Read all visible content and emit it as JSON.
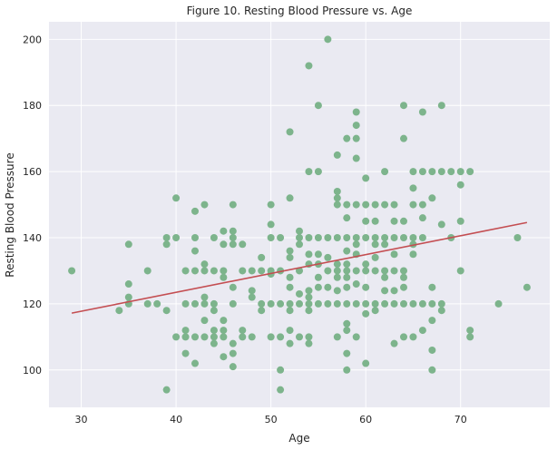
{
  "chart_data": {
    "type": "scatter",
    "title": "Figure 10. Resting Blood Pressure vs. Age",
    "xlabel": "Age",
    "ylabel": "Resting Blood Pressure",
    "xlim": [
      26.6,
      79.4
    ],
    "ylim": [
      88.7,
      205.3
    ],
    "xticks": [
      "30",
      "40",
      "50",
      "60",
      "70"
    ],
    "yticks": [
      "100",
      "120",
      "140",
      "160",
      "180",
      "200"
    ],
    "grid": true,
    "legend": "none",
    "colors": {
      "background": "#eaeaf2",
      "grid": "#ffffff",
      "points": "#7db48c",
      "fit_line": "#c44e52"
    },
    "fit_line": {
      "x": [
        29,
        77
      ],
      "y": [
        117.2,
        144.6
      ]
    },
    "points": [
      {
        "x": 29,
        "y": 130
      },
      {
        "x": 34,
        "y": 118
      },
      {
        "x": 35,
        "y": 138
      },
      {
        "x": 35,
        "y": 126
      },
      {
        "x": 35,
        "y": 122
      },
      {
        "x": 35,
        "y": 120
      },
      {
        "x": 37,
        "y": 130
      },
      {
        "x": 37,
        "y": 120
      },
      {
        "x": 38,
        "y": 120
      },
      {
        "x": 39,
        "y": 140
      },
      {
        "x": 39,
        "y": 138
      },
      {
        "x": 39,
        "y": 118
      },
      {
        "x": 39,
        "y": 94
      },
      {
        "x": 40,
        "y": 152
      },
      {
        "x": 40,
        "y": 140
      },
      {
        "x": 40,
        "y": 110
      },
      {
        "x": 41,
        "y": 130
      },
      {
        "x": 41,
        "y": 120
      },
      {
        "x": 41,
        "y": 112
      },
      {
        "x": 41,
        "y": 110
      },
      {
        "x": 41,
        "y": 105
      },
      {
        "x": 42,
        "y": 148
      },
      {
        "x": 42,
        "y": 140
      },
      {
        "x": 42,
        "y": 136
      },
      {
        "x": 42,
        "y": 130
      },
      {
        "x": 42,
        "y": 120
      },
      {
        "x": 42,
        "y": 110
      },
      {
        "x": 42,
        "y": 102
      },
      {
        "x": 43,
        "y": 150
      },
      {
        "x": 43,
        "y": 132
      },
      {
        "x": 43,
        "y": 130
      },
      {
        "x": 43,
        "y": 122
      },
      {
        "x": 43,
        "y": 120
      },
      {
        "x": 43,
        "y": 115
      },
      {
        "x": 43,
        "y": 110
      },
      {
        "x": 44,
        "y": 140
      },
      {
        "x": 44,
        "y": 130
      },
      {
        "x": 44,
        "y": 120
      },
      {
        "x": 44,
        "y": 118
      },
      {
        "x": 44,
        "y": 112
      },
      {
        "x": 44,
        "y": 110
      },
      {
        "x": 44,
        "y": 108
      },
      {
        "x": 45,
        "y": 142
      },
      {
        "x": 45,
        "y": 138
      },
      {
        "x": 45,
        "y": 130
      },
      {
        "x": 45,
        "y": 128
      },
      {
        "x": 45,
        "y": 115
      },
      {
        "x": 45,
        "y": 112
      },
      {
        "x": 45,
        "y": 110
      },
      {
        "x": 45,
        "y": 104
      },
      {
        "x": 46,
        "y": 150
      },
      {
        "x": 46,
        "y": 142
      },
      {
        "x": 46,
        "y": 140
      },
      {
        "x": 46,
        "y": 138
      },
      {
        "x": 46,
        "y": 125
      },
      {
        "x": 46,
        "y": 120
      },
      {
        "x": 46,
        "y": 108
      },
      {
        "x": 46,
        "y": 105
      },
      {
        "x": 46,
        "y": 101
      },
      {
        "x": 47,
        "y": 138
      },
      {
        "x": 47,
        "y": 130
      },
      {
        "x": 47,
        "y": 112
      },
      {
        "x": 47,
        "y": 110
      },
      {
        "x": 48,
        "y": 130
      },
      {
        "x": 48,
        "y": 124
      },
      {
        "x": 48,
        "y": 122
      },
      {
        "x": 48,
        "y": 110
      },
      {
        "x": 49,
        "y": 134
      },
      {
        "x": 49,
        "y": 130
      },
      {
        "x": 49,
        "y": 120
      },
      {
        "x": 49,
        "y": 118
      },
      {
        "x": 50,
        "y": 150
      },
      {
        "x": 50,
        "y": 144
      },
      {
        "x": 50,
        "y": 140
      },
      {
        "x": 50,
        "y": 130
      },
      {
        "x": 50,
        "y": 129
      },
      {
        "x": 50,
        "y": 120
      },
      {
        "x": 50,
        "y": 110
      },
      {
        "x": 51,
        "y": 140
      },
      {
        "x": 51,
        "y": 130
      },
      {
        "x": 51,
        "y": 120
      },
      {
        "x": 51,
        "y": 110
      },
      {
        "x": 51,
        "y": 100
      },
      {
        "x": 51,
        "y": 94
      },
      {
        "x": 52,
        "y": 172
      },
      {
        "x": 52,
        "y": 152
      },
      {
        "x": 52,
        "y": 136
      },
      {
        "x": 52,
        "y": 134
      },
      {
        "x": 52,
        "y": 128
      },
      {
        "x": 52,
        "y": 125
      },
      {
        "x": 52,
        "y": 120
      },
      {
        "x": 52,
        "y": 118
      },
      {
        "x": 52,
        "y": 112
      },
      {
        "x": 52,
        "y": 108
      },
      {
        "x": 53,
        "y": 142
      },
      {
        "x": 53,
        "y": 140
      },
      {
        "x": 53,
        "y": 138
      },
      {
        "x": 53,
        "y": 130
      },
      {
        "x": 53,
        "y": 123
      },
      {
        "x": 53,
        "y": 120
      },
      {
        "x": 53,
        "y": 110
      },
      {
        "x": 54,
        "y": 192
      },
      {
        "x": 54,
        "y": 160
      },
      {
        "x": 54,
        "y": 140
      },
      {
        "x": 54,
        "y": 135
      },
      {
        "x": 54,
        "y": 132
      },
      {
        "x": 54,
        "y": 124
      },
      {
        "x": 54,
        "y": 122
      },
      {
        "x": 54,
        "y": 120
      },
      {
        "x": 54,
        "y": 118
      },
      {
        "x": 54,
        "y": 110
      },
      {
        "x": 54,
        "y": 108
      },
      {
        "x": 55,
        "y": 180
      },
      {
        "x": 55,
        "y": 160
      },
      {
        "x": 55,
        "y": 140
      },
      {
        "x": 55,
        "y": 135
      },
      {
        "x": 55,
        "y": 132
      },
      {
        "x": 55,
        "y": 128
      },
      {
        "x": 55,
        "y": 125
      },
      {
        "x": 55,
        "y": 120
      },
      {
        "x": 56,
        "y": 200
      },
      {
        "x": 56,
        "y": 140
      },
      {
        "x": 56,
        "y": 134
      },
      {
        "x": 56,
        "y": 130
      },
      {
        "x": 56,
        "y": 125
      },
      {
        "x": 56,
        "y": 120
      },
      {
        "x": 57,
        "y": 165
      },
      {
        "x": 57,
        "y": 154
      },
      {
        "x": 57,
        "y": 152
      },
      {
        "x": 57,
        "y": 150
      },
      {
        "x": 57,
        "y": 140
      },
      {
        "x": 57,
        "y": 132
      },
      {
        "x": 57,
        "y": 130
      },
      {
        "x": 57,
        "y": 128
      },
      {
        "x": 57,
        "y": 124
      },
      {
        "x": 57,
        "y": 120
      },
      {
        "x": 57,
        "y": 110
      },
      {
        "x": 58,
        "y": 170
      },
      {
        "x": 58,
        "y": 150
      },
      {
        "x": 58,
        "y": 146
      },
      {
        "x": 58,
        "y": 140
      },
      {
        "x": 58,
        "y": 136
      },
      {
        "x": 58,
        "y": 132
      },
      {
        "x": 58,
        "y": 130
      },
      {
        "x": 58,
        "y": 128
      },
      {
        "x": 58,
        "y": 125
      },
      {
        "x": 58,
        "y": 120
      },
      {
        "x": 58,
        "y": 114
      },
      {
        "x": 58,
        "y": 112
      },
      {
        "x": 58,
        "y": 105
      },
      {
        "x": 58,
        "y": 100
      },
      {
        "x": 59,
        "y": 178
      },
      {
        "x": 59,
        "y": 174
      },
      {
        "x": 59,
        "y": 170
      },
      {
        "x": 59,
        "y": 164
      },
      {
        "x": 59,
        "y": 150
      },
      {
        "x": 59,
        "y": 140
      },
      {
        "x": 59,
        "y": 138
      },
      {
        "x": 59,
        "y": 135
      },
      {
        "x": 59,
        "y": 130
      },
      {
        "x": 59,
        "y": 126
      },
      {
        "x": 59,
        "y": 120
      },
      {
        "x": 59,
        "y": 110
      },
      {
        "x": 60,
        "y": 158
      },
      {
        "x": 60,
        "y": 150
      },
      {
        "x": 60,
        "y": 145
      },
      {
        "x": 60,
        "y": 140
      },
      {
        "x": 60,
        "y": 132
      },
      {
        "x": 60,
        "y": 130
      },
      {
        "x": 60,
        "y": 125
      },
      {
        "x": 60,
        "y": 120
      },
      {
        "x": 60,
        "y": 117
      },
      {
        "x": 60,
        "y": 102
      },
      {
        "x": 61,
        "y": 150
      },
      {
        "x": 61,
        "y": 145
      },
      {
        "x": 61,
        "y": 140
      },
      {
        "x": 61,
        "y": 138
      },
      {
        "x": 61,
        "y": 134
      },
      {
        "x": 61,
        "y": 130
      },
      {
        "x": 61,
        "y": 120
      },
      {
        "x": 61,
        "y": 118
      },
      {
        "x": 62,
        "y": 160
      },
      {
        "x": 62,
        "y": 150
      },
      {
        "x": 62,
        "y": 140
      },
      {
        "x": 62,
        "y": 138
      },
      {
        "x": 62,
        "y": 130
      },
      {
        "x": 62,
        "y": 128
      },
      {
        "x": 62,
        "y": 124
      },
      {
        "x": 62,
        "y": 120
      },
      {
        "x": 63,
        "y": 150
      },
      {
        "x": 63,
        "y": 145
      },
      {
        "x": 63,
        "y": 140
      },
      {
        "x": 63,
        "y": 135
      },
      {
        "x": 63,
        "y": 130
      },
      {
        "x": 63,
        "y": 124
      },
      {
        "x": 63,
        "y": 120
      },
      {
        "x": 63,
        "y": 108
      },
      {
        "x": 64,
        "y": 180
      },
      {
        "x": 64,
        "y": 170
      },
      {
        "x": 64,
        "y": 145
      },
      {
        "x": 64,
        "y": 140
      },
      {
        "x": 64,
        "y": 130
      },
      {
        "x": 64,
        "y": 128
      },
      {
        "x": 64,
        "y": 125
      },
      {
        "x": 64,
        "y": 120
      },
      {
        "x": 64,
        "y": 110
      },
      {
        "x": 65,
        "y": 160
      },
      {
        "x": 65,
        "y": 155
      },
      {
        "x": 65,
        "y": 150
      },
      {
        "x": 65,
        "y": 140
      },
      {
        "x": 65,
        "y": 138
      },
      {
        "x": 65,
        "y": 135
      },
      {
        "x": 65,
        "y": 120
      },
      {
        "x": 65,
        "y": 110
      },
      {
        "x": 66,
        "y": 178
      },
      {
        "x": 66,
        "y": 160
      },
      {
        "x": 66,
        "y": 150
      },
      {
        "x": 66,
        "y": 146
      },
      {
        "x": 66,
        "y": 140
      },
      {
        "x": 66,
        "y": 120
      },
      {
        "x": 66,
        "y": 112
      },
      {
        "x": 67,
        "y": 160
      },
      {
        "x": 67,
        "y": 152
      },
      {
        "x": 67,
        "y": 125
      },
      {
        "x": 67,
        "y": 120
      },
      {
        "x": 67,
        "y": 115
      },
      {
        "x": 67,
        "y": 106
      },
      {
        "x": 67,
        "y": 100
      },
      {
        "x": 68,
        "y": 180
      },
      {
        "x": 68,
        "y": 160
      },
      {
        "x": 68,
        "y": 144
      },
      {
        "x": 68,
        "y": 120
      },
      {
        "x": 68,
        "y": 118
      },
      {
        "x": 69,
        "y": 160
      },
      {
        "x": 69,
        "y": 140
      },
      {
        "x": 70,
        "y": 160
      },
      {
        "x": 70,
        "y": 156
      },
      {
        "x": 70,
        "y": 145
      },
      {
        "x": 70,
        "y": 130
      },
      {
        "x": 71,
        "y": 160
      },
      {
        "x": 71,
        "y": 112
      },
      {
        "x": 71,
        "y": 110
      },
      {
        "x": 74,
        "y": 120
      },
      {
        "x": 76,
        "y": 140
      },
      {
        "x": 77,
        "y": 125
      }
    ]
  }
}
